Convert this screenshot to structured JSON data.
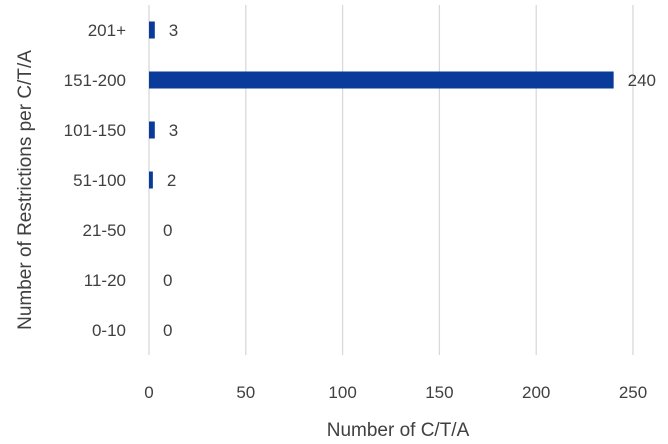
{
  "chart_data": {
    "type": "bar",
    "orientation": "horizontal",
    "title": "",
    "xlabel": "Number of C/T/A",
    "ylabel": "Number of Restrictions per C/T/A",
    "categories": [
      "0-10",
      "11-20",
      "21-50",
      "51-100",
      "101-150",
      "151-200",
      "201+"
    ],
    "values": [
      0,
      0,
      0,
      2,
      3,
      240,
      3
    ],
    "data_labels": [
      "0",
      "0",
      "0",
      "2",
      "3",
      "240",
      "3"
    ],
    "xlim": [
      0,
      250
    ],
    "xticks": [
      0,
      50,
      100,
      150,
      200,
      250
    ],
    "xtick_labels": [
      "0",
      "50",
      "100",
      "150",
      "200",
      "250"
    ],
    "grid": "vertical",
    "legend": "none",
    "colors": {
      "bar": "#0a3a9a",
      "grid": "#d9d9d9",
      "text": "#404040"
    }
  }
}
